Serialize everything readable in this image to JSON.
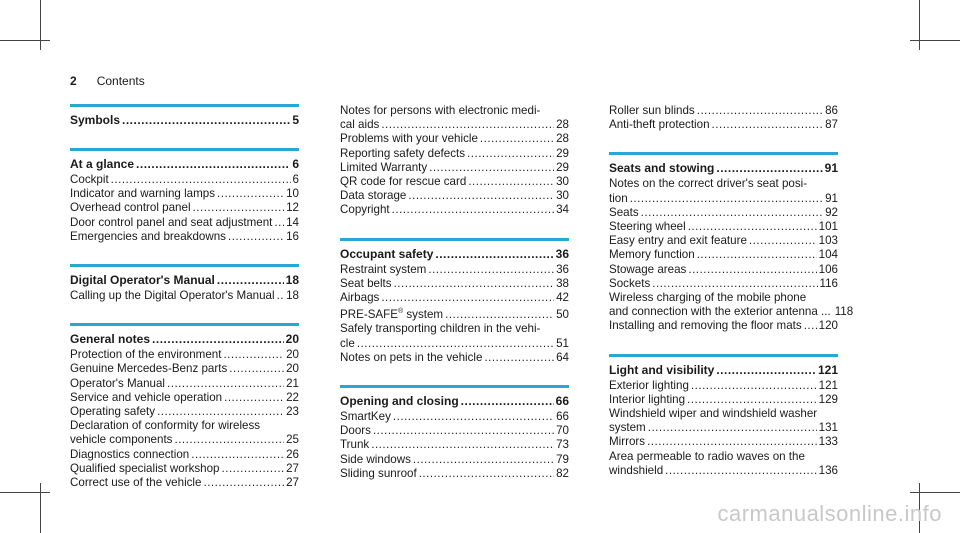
{
  "header": {
    "page_number": "2",
    "title": "Contents"
  },
  "watermark": "carmanualsonline.info",
  "columns": [
    [
      {
        "title": "Symbols",
        "page": "5",
        "entries": []
      },
      {
        "title": "At a glance",
        "page": "6",
        "entries": [
          {
            "text": "Cockpit",
            "page": "6"
          },
          {
            "text": "Indicator and warning lamps",
            "page": "10"
          },
          {
            "text": "Overhead control panel",
            "page": "12"
          },
          {
            "text": "Door control panel and seat adjustment",
            "page": "14"
          },
          {
            "text": "Emergencies and breakdowns",
            "page": "16"
          }
        ]
      },
      {
        "title": "Digital Operator's Manual",
        "page": "18",
        "entries": [
          {
            "text": "Calling up the Digital Operator's Manual",
            "page": "18"
          }
        ]
      },
      {
        "title": "General notes",
        "page": "20",
        "entries": [
          {
            "text": "Protection of the environment",
            "page": "20"
          },
          {
            "text": "Genuine Mercedes-Benz parts",
            "page": "20"
          },
          {
            "text": "Operator's Manual",
            "page": "21"
          },
          {
            "text": "Service and vehicle operation",
            "page": "22"
          },
          {
            "text": "Operating safety",
            "page": "23"
          },
          {
            "cont": "Declaration of conformity for wireless",
            "text": "vehicle components",
            "page": "25"
          },
          {
            "text": "Diagnostics connection",
            "page": "26"
          },
          {
            "text": "Qualified specialist workshop",
            "page": "27"
          },
          {
            "text": "Correct use of the vehicle",
            "page": "27"
          }
        ]
      }
    ],
    [
      {
        "title": "",
        "page": "",
        "entries": [
          {
            "cont": "Notes for persons with electronic medi-",
            "text": "cal aids",
            "page": "28"
          },
          {
            "text": "Problems with your vehicle",
            "page": "28"
          },
          {
            "text": "Reporting safety defects",
            "page": "29"
          },
          {
            "text": "Limited Warranty",
            "page": "29"
          },
          {
            "text": "QR code for rescue card",
            "page": "30"
          },
          {
            "text": "Data storage",
            "page": "30"
          },
          {
            "text": "Copyright",
            "page": "34"
          }
        ]
      },
      {
        "title": "Occupant safety",
        "page": "36",
        "entries": [
          {
            "text": "Restraint system",
            "page": "36"
          },
          {
            "text": "Seat belts",
            "page": "38"
          },
          {
            "text": "Airbags",
            "page": "42"
          },
          {
            "text": "PRE-SAFE® system",
            "page": "50"
          },
          {
            "cont": "Safely transporting children in the vehi-",
            "text": "cle",
            "page": "51"
          },
          {
            "text": "Notes on pets in the vehicle",
            "page": "64"
          }
        ]
      },
      {
        "title": "Opening and closing",
        "page": "66",
        "entries": [
          {
            "text": "SmartKey",
            "page": "66"
          },
          {
            "text": "Doors",
            "page": "70"
          },
          {
            "text": "Trunk",
            "page": "73"
          },
          {
            "text": "Side windows",
            "page": "79"
          },
          {
            "text": "Sliding sunroof",
            "page": "82"
          }
        ]
      }
    ],
    [
      {
        "title": "",
        "page": "",
        "entries": [
          {
            "text": "Roller sun blinds",
            "page": "86"
          },
          {
            "text": "Anti-theft protection",
            "page": "87"
          }
        ]
      },
      {
        "title": "Seats and stowing",
        "page": "91",
        "entries": [
          {
            "cont": "Notes on the correct driver's seat posi-",
            "text": "tion",
            "page": "91"
          },
          {
            "text": "Seats",
            "page": "92"
          },
          {
            "text": "Steering wheel",
            "page": "101"
          },
          {
            "text": "Easy entry and exit feature",
            "page": "103"
          },
          {
            "text": "Memory function",
            "page": "104"
          },
          {
            "text": "Stowage areas",
            "page": "106"
          },
          {
            "text": "Sockets",
            "page": "116"
          },
          {
            "cont": "Wireless charging of the mobile phone",
            "text": "and connection with the exterior antenna ...",
            "page": "118"
          },
          {
            "text": "Installing and removing the floor mats",
            "page": "120"
          }
        ]
      },
      {
        "title": "Light and visibility",
        "page": "121",
        "entries": [
          {
            "text": "Exterior lighting",
            "page": "121"
          },
          {
            "text": "Interior lighting",
            "page": "129"
          },
          {
            "cont": "Windshield wiper and windshield washer",
            "text": "system",
            "page": "131"
          },
          {
            "text": "Mirrors",
            "page": "133"
          },
          {
            "cont": "Area permeable to radio waves on the",
            "text": "windshield",
            "page": "136"
          }
        ]
      }
    ]
  ]
}
